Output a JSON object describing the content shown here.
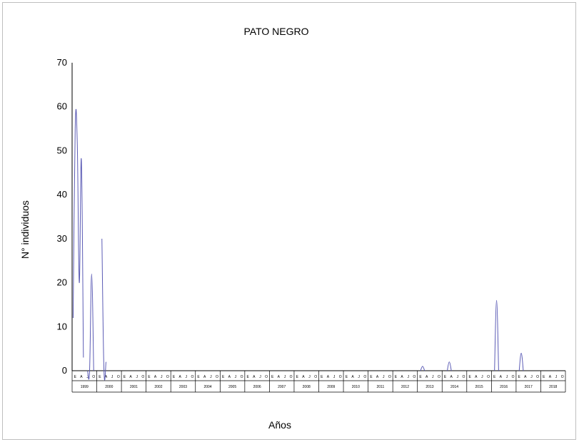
{
  "chart_data": {
    "type": "line",
    "title": "PATO NEGRO",
    "xlabel": "Años",
    "ylabel": "N° individuos",
    "ylim": [
      0,
      70
    ],
    "yticks": [
      "0",
      "10",
      "20",
      "30",
      "40",
      "50",
      "60",
      "70"
    ],
    "month_labels": [
      "E",
      "A",
      "J",
      "O"
    ],
    "years": [
      "1999",
      "2000",
      "2001",
      "2002",
      "2003",
      "2004",
      "2005",
      "2006",
      "2007",
      "2008",
      "2009",
      "2010",
      "2011",
      "2012",
      "2013",
      "2014",
      "2015",
      "2016",
      "2017",
      "2018"
    ],
    "series": [
      {
        "color": "#5b5bb5",
        "values": [
          12,
          55,
          52,
          20,
          48,
          3,
          null,
          0,
          0,
          22,
          0,
          null,
          null,
          null,
          30,
          0,
          2,
          null,
          null,
          null,
          null,
          null,
          null,
          null,
          null,
          null,
          null,
          null,
          null,
          null,
          null,
          null,
          null,
          null,
          null,
          null,
          null,
          null,
          null,
          null,
          null,
          null,
          null,
          null,
          null,
          null,
          null,
          null,
          null,
          null,
          null,
          null,
          null,
          null,
          null,
          null,
          null,
          null,
          null,
          null,
          null,
          null,
          null,
          null,
          null,
          null,
          null,
          null,
          null,
          null,
          null,
          null,
          null,
          null,
          null,
          null,
          null,
          null,
          null,
          null,
          null,
          null,
          null,
          null,
          null,
          null,
          null,
          null,
          null,
          null,
          null,
          null,
          null,
          null,
          null,
          null,
          null,
          null,
          null,
          null,
          null,
          null,
          null,
          null,
          null,
          null,
          null,
          null,
          null,
          null,
          null,
          null,
          null,
          null,
          null,
          null,
          null,
          null,
          null,
          null,
          null,
          null,
          null,
          null,
          null,
          null,
          null,
          null,
          null,
          null,
          null,
          null,
          null,
          null,
          null,
          null,
          null,
          null,
          null,
          null,
          null,
          null,
          null,
          null,
          null,
          null,
          null,
          null,
          null,
          null,
          null,
          null,
          null,
          null,
          null,
          null,
          null,
          null,
          null,
          null,
          null,
          null,
          null,
          null,
          null,
          null,
          null,
          null,
          null,
          0,
          1,
          0,
          null,
          null,
          null,
          null,
          null,
          null,
          null,
          null,
          null,
          null,
          0,
          2,
          0,
          null,
          null,
          null,
          null,
          null,
          null,
          null,
          null,
          null,
          null,
          null,
          null,
          null,
          null,
          null,
          null,
          null,
          null,
          null,
          null,
          0,
          16,
          0,
          null,
          null,
          null,
          null,
          null,
          null,
          null,
          null,
          null,
          0,
          4,
          0,
          null,
          null,
          null,
          null,
          null,
          null,
          null,
          null,
          null,
          null,
          null,
          null,
          null,
          null,
          null,
          null,
          null,
          null,
          null,
          null
        ]
      }
    ]
  }
}
